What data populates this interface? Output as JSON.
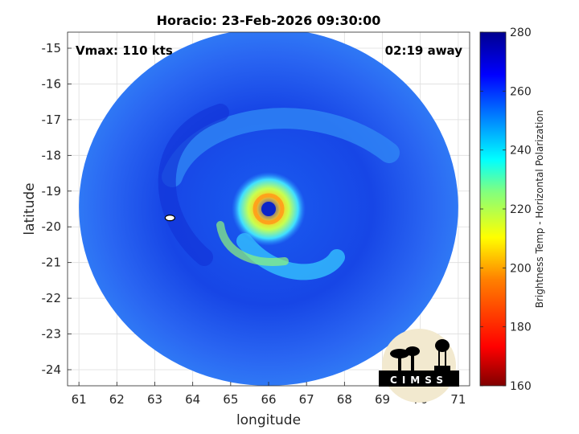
{
  "chart_data": {
    "type": "heatmap",
    "title": "Horacio: 23-Feb-2026 09:30:00",
    "annotations": {
      "left": "Vmax: 110 kts",
      "right": "02:19 away"
    },
    "xlabel": "longitude",
    "ylabel": "latitude",
    "xlim": [
      60.7,
      71.3
    ],
    "ylim": [
      -24.45,
      -14.55
    ],
    "x_ticks": [
      "61",
      "62",
      "63",
      "64",
      "65",
      "66",
      "67",
      "68",
      "69",
      "70",
      "71"
    ],
    "y_ticks": [
      "-15",
      "-16",
      "-17",
      "-18",
      "-19",
      "-20",
      "-21",
      "-22",
      "-23",
      "-24"
    ],
    "grid": true,
    "colorbar": {
      "label": "Brightness Temp - Horizontal Polarization",
      "range": [
        160,
        280
      ],
      "ticks": [
        "160",
        "180",
        "200",
        "220",
        "240",
        "260",
        "280"
      ],
      "colors": [
        "#800000",
        "#ff0000",
        "#ff8000",
        "#ffff00",
        "#80ff80",
        "#00ffff",
        "#0080ff",
        "#0000ff",
        "#00008f"
      ]
    },
    "features": {
      "swath_center": [
        66.0,
        -19.45
      ],
      "swath_radius_deg": 5.0,
      "eye_center": [
        66.0,
        -19.5
      ],
      "eye_temp": 265,
      "background_temp": 255,
      "eyewall_temp": 200,
      "small_contour_at": [
        63.4,
        -19.75
      ]
    },
    "logo": "CIMSS"
  }
}
